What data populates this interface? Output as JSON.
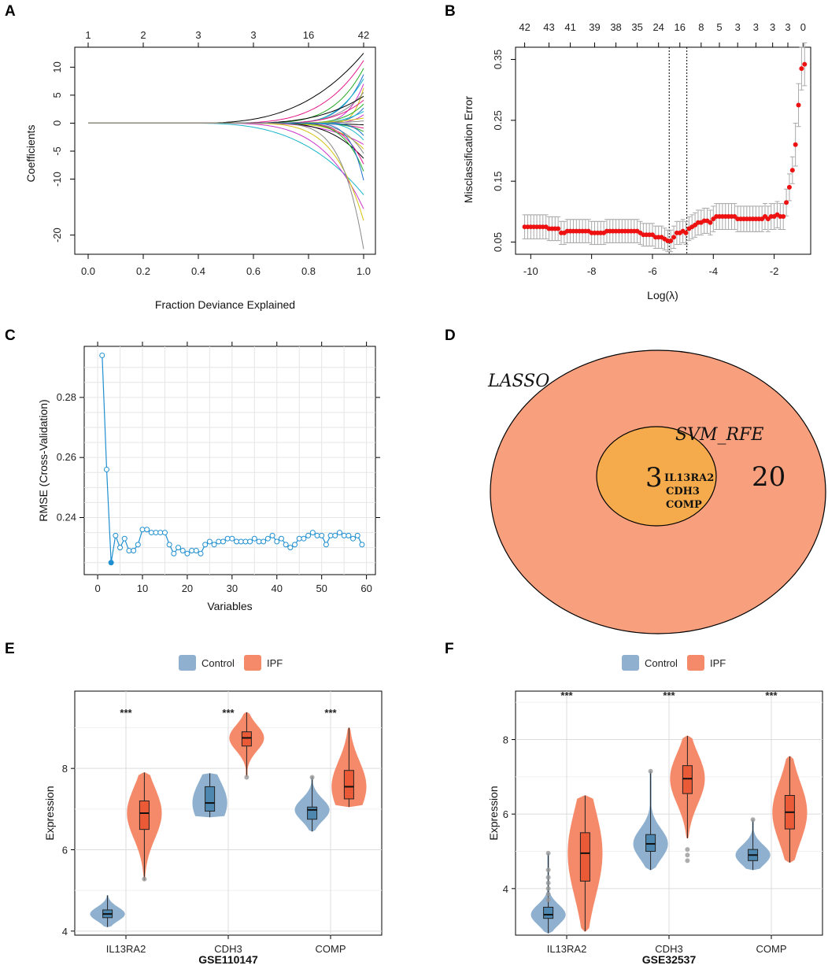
{
  "panels": {
    "A": "A",
    "B": "B",
    "C": "C",
    "D": "D",
    "E": "E",
    "F": "F"
  },
  "colors": {
    "control": "#8fb1cf",
    "ipf": "#f58a6a",
    "control_box": "#4d87b0",
    "ipf_box": "#ea5a36",
    "outer_venn": "#f8a07e",
    "inner_venn": "#f5ab4b",
    "cv_red": "#ee1111",
    "rmse_blue": "#1f8fd0"
  },
  "chart_data": [
    {
      "id": "A",
      "type": "line",
      "title": "",
      "xlabel": "Fraction Deviance Explained",
      "ylabel": "Coefficients",
      "xlim": [
        0,
        1
      ],
      "ylim": [
        -23,
        13
      ],
      "xticks": [
        "0.0",
        "0.2",
        "0.4",
        "0.6",
        "0.8",
        "1.0"
      ],
      "yticks": [
        "10",
        "5",
        "0",
        "-5",
        "-10",
        "-20"
      ],
      "top_ticks": [
        "1",
        "2",
        "3",
        "3",
        "16",
        "42"
      ],
      "top_ticks_x": [
        0.0,
        0.2,
        0.4,
        0.6,
        0.8,
        1.0
      ],
      "final_values": [
        12.5,
        11.2,
        9.8,
        8.7,
        7.9,
        7.0,
        6.3,
        5.5,
        4.8,
        4.1,
        3.4,
        2.7,
        2.1,
        1.5,
        0.9,
        0.4,
        -0.3,
        -0.9,
        -1.5,
        -2.2,
        -3.0,
        -3.8,
        -4.6,
        -5.4,
        -6.3,
        -7.3,
        -8.6,
        -10.2,
        -12.8,
        -15.3,
        -17.4,
        -22.5
      ]
    },
    {
      "id": "B",
      "type": "scatter",
      "xlabel": "Log(λ)",
      "ylabel": "Misclassification Error",
      "xlim": [
        -10.5,
        -0.8
      ],
      "ylim": [
        0.03,
        0.37
      ],
      "xticks": [
        "-10",
        "-8",
        "-6",
        "-4",
        "-2"
      ],
      "yticks": [
        "0.05",
        "0.15",
        "0.25",
        "0.35"
      ],
      "top_ticks": [
        "42",
        "43",
        "41",
        "39",
        "38",
        "35",
        "24",
        "16",
        "8",
        "5",
        "3",
        "3",
        "3",
        "3",
        "0"
      ],
      "top_ticks_x": [
        -10.2,
        -9.4,
        -8.7,
        -7.9,
        -7.2,
        -6.5,
        -5.8,
        -5.1,
        -4.4,
        -3.8,
        -3.2,
        -2.6,
        -2.05,
        -1.55,
        -1.05
      ],
      "vlines": [
        -5.45,
        -4.87
      ],
      "x": [
        -10.2,
        -10.1,
        -10.0,
        -9.9,
        -9.8,
        -9.7,
        -9.6,
        -9.5,
        -9.4,
        -9.3,
        -9.2,
        -9.1,
        -9.0,
        -8.9,
        -8.8,
        -8.7,
        -8.6,
        -8.5,
        -8.4,
        -8.3,
        -8.2,
        -8.1,
        -8.0,
        -7.9,
        -7.8,
        -7.7,
        -7.6,
        -7.5,
        -7.4,
        -7.3,
        -7.2,
        -7.1,
        -7.0,
        -6.9,
        -6.8,
        -6.7,
        -6.6,
        -6.5,
        -6.4,
        -6.3,
        -6.2,
        -6.1,
        -6.0,
        -5.9,
        -5.8,
        -5.7,
        -5.6,
        -5.5,
        -5.4,
        -5.3,
        -5.2,
        -5.1,
        -5.0,
        -4.9,
        -4.8,
        -4.7,
        -4.6,
        -4.5,
        -4.4,
        -4.3,
        -4.2,
        -4.1,
        -4.0,
        -3.9,
        -3.8,
        -3.7,
        -3.6,
        -3.5,
        -3.4,
        -3.3,
        -3.2,
        -3.1,
        -3.0,
        -2.9,
        -2.8,
        -2.7,
        -2.6,
        -2.5,
        -2.4,
        -2.3,
        -2.2,
        -2.1,
        -2.0,
        -1.9,
        -1.8,
        -1.7,
        -1.6,
        -1.5,
        -1.4,
        -1.3,
        -1.2,
        -1.1,
        -1.0
      ],
      "y": [
        0.075,
        0.075,
        0.075,
        0.075,
        0.075,
        0.075,
        0.075,
        0.075,
        0.072,
        0.072,
        0.072,
        0.072,
        0.065,
        0.065,
        0.068,
        0.068,
        0.068,
        0.068,
        0.068,
        0.068,
        0.068,
        0.068,
        0.065,
        0.065,
        0.065,
        0.065,
        0.065,
        0.068,
        0.068,
        0.068,
        0.068,
        0.068,
        0.068,
        0.068,
        0.068,
        0.068,
        0.068,
        0.068,
        0.065,
        0.062,
        0.062,
        0.062,
        0.062,
        0.058,
        0.058,
        0.058,
        0.055,
        0.052,
        0.052,
        0.058,
        0.065,
        0.065,
        0.068,
        0.065,
        0.072,
        0.075,
        0.078,
        0.082,
        0.082,
        0.085,
        0.085,
        0.082,
        0.088,
        0.092,
        0.092,
        0.092,
        0.092,
        0.092,
        0.092,
        0.092,
        0.088,
        0.088,
        0.088,
        0.088,
        0.088,
        0.088,
        0.088,
        0.088,
        0.088,
        0.092,
        0.088,
        0.092,
        0.092,
        0.095,
        0.092,
        0.092,
        0.115,
        0.14,
        0.168,
        0.21,
        0.275,
        0.335,
        0.342
      ],
      "err": 0.022
    },
    {
      "id": "C",
      "type": "line",
      "xlabel": "Variables",
      "ylabel": "RMSE (Cross-Validation)",
      "xlim": [
        -3,
        62
      ],
      "ylim": [
        0.221,
        0.297
      ],
      "xticks": [
        "0",
        "10",
        "20",
        "30",
        "40",
        "50",
        "60"
      ],
      "yticks": [
        "0.24",
        "0.26",
        "0.28"
      ],
      "x": [
        1,
        2,
        3,
        4,
        5,
        6,
        7,
        8,
        9,
        10,
        11,
        12,
        13,
        14,
        15,
        16,
        17,
        18,
        19,
        20,
        21,
        22,
        23,
        24,
        25,
        26,
        27,
        28,
        29,
        30,
        31,
        32,
        33,
        34,
        35,
        36,
        37,
        38,
        39,
        40,
        41,
        42,
        43,
        44,
        45,
        46,
        47,
        48,
        49,
        50,
        51,
        52,
        53,
        54,
        55,
        56,
        57,
        58,
        59
      ],
      "y": [
        0.294,
        0.256,
        0.225,
        0.234,
        0.23,
        0.233,
        0.229,
        0.229,
        0.231,
        0.236,
        0.236,
        0.235,
        0.235,
        0.235,
        0.235,
        0.231,
        0.228,
        0.23,
        0.229,
        0.228,
        0.229,
        0.229,
        0.228,
        0.231,
        0.232,
        0.231,
        0.232,
        0.232,
        0.233,
        0.233,
        0.232,
        0.232,
        0.232,
        0.232,
        0.233,
        0.232,
        0.232,
        0.233,
        0.234,
        0.232,
        0.233,
        0.231,
        0.23,
        0.231,
        0.233,
        0.233,
        0.234,
        0.235,
        0.234,
        0.234,
        0.231,
        0.234,
        0.234,
        0.235,
        0.234,
        0.234,
        0.233,
        0.234,
        0.231
      ],
      "best_index": 2
    },
    {
      "id": "D",
      "type": "venn",
      "sets": [
        "LASSO",
        "SVM_RFE"
      ],
      "only_lasso": "20",
      "intersection": "3",
      "genes": [
        "IL13RA2",
        "CDH3",
        "COMP"
      ]
    },
    {
      "id": "E",
      "type": "violin",
      "title": "",
      "legend": [
        "Control",
        "IPF"
      ],
      "xlabel": "GSE110147",
      "ylabel": "Expression",
      "categories": [
        "IL13RA2",
        "CDH3",
        "COMP"
      ],
      "ylim": [
        3.9,
        9.9
      ],
      "yticks": [
        4,
        6,
        8
      ],
      "significance": [
        "***",
        "***",
        "***"
      ],
      "series": [
        {
          "name": "Control",
          "min": [
            4.1,
            6.8,
            6.45
          ],
          "q1": [
            4.33,
            6.95,
            6.75
          ],
          "median": [
            4.42,
            7.15,
            6.98
          ],
          "q3": [
            4.52,
            7.55,
            7.05
          ],
          "max": [
            4.88,
            7.88,
            7.8
          ],
          "outliers": [
            [],
            [],
            [
              7.78
            ]
          ]
        },
        {
          "name": "IPF",
          "min": [
            5.25,
            7.8,
            7.05
          ],
          "q1": [
            6.5,
            8.55,
            7.25
          ],
          "median": [
            6.9,
            8.75,
            7.55
          ],
          "q3": [
            7.2,
            8.9,
            7.95
          ],
          "max": [
            7.9,
            9.38,
            9.0
          ],
          "outliers": [
            [
              5.28
            ],
            [
              7.78
            ],
            []
          ]
        }
      ]
    },
    {
      "id": "F",
      "type": "violin",
      "legend": [
        "Control",
        "IPF"
      ],
      "xlabel": "GSE32537",
      "ylabel": "Expression",
      "categories": [
        "IL13RA2",
        "CDH3",
        "COMP"
      ],
      "ylim": [
        2.75,
        9.3
      ],
      "yticks": [
        4,
        6,
        8
      ],
      "significance": [
        "***",
        "***",
        "***"
      ],
      "series": [
        {
          "name": "Control",
          "min": [
            2.8,
            4.5,
            4.5
          ],
          "q1": [
            3.2,
            5.0,
            4.75
          ],
          "median": [
            3.3,
            5.2,
            4.9
          ],
          "q3": [
            3.5,
            5.45,
            5.05
          ],
          "max": [
            4.95,
            7.15,
            5.85
          ],
          "outliers": [
            [
              3.7,
              3.85,
              4.0,
              4.15,
              4.3,
              4.5,
              4.95
            ],
            [
              7.15
            ],
            [
              5.85
            ]
          ]
        },
        {
          "name": "IPF",
          "min": [
            2.85,
            5.35,
            4.7
          ],
          "q1": [
            4.2,
            6.55,
            5.6
          ],
          "median": [
            4.95,
            6.95,
            6.05
          ],
          "q3": [
            5.5,
            7.3,
            6.5
          ],
          "max": [
            6.5,
            8.1,
            7.55
          ],
          "outliers": [
            [],
            [
              4.75,
              4.9,
              5.05
            ],
            []
          ]
        }
      ]
    }
  ]
}
